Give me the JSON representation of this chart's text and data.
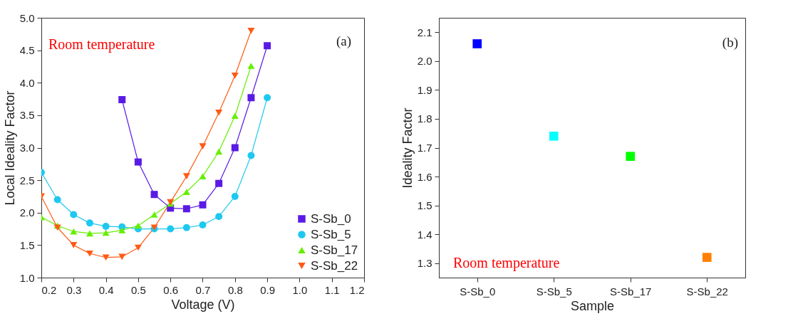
{
  "chart_data": [
    {
      "type": "line",
      "xlabel": "Voltage (V)",
      "ylabel": "Local Ideality Factor",
      "annotations": [
        "Room temperature",
        "(a)"
      ],
      "xlim": [
        0.2,
        1.2
      ],
      "ylim": [
        1.0,
        5.0
      ],
      "xticks": [
        0.2,
        0.3,
        0.4,
        0.5,
        0.6,
        0.7,
        0.8,
        0.9,
        {
          "value": 1,
          "label": "1.0"
        },
        1.1,
        1.2
      ],
      "yticks": [
        {
          "value": 1,
          "label": "1.0"
        },
        1.5,
        {
          "value": 2,
          "label": "2.0"
        },
        2.5,
        {
          "value": 3,
          "label": "3.0"
        },
        3.5,
        {
          "value": 4,
          "label": "4.0"
        },
        4.5,
        {
          "value": 5,
          "label": "5.0"
        }
      ],
      "grid": false,
      "legend": "bottom right",
      "series": [
        {
          "name": "S-Sb_0",
          "color": "#5a1ae6",
          "marker": "square",
          "x": [
            0.45,
            0.5,
            0.55,
            0.6,
            0.65,
            0.7,
            0.75,
            0.8,
            0.85,
            0.9
          ],
          "values": [
            3.74,
            2.78,
            2.28,
            2.07,
            2.06,
            2.12,
            2.45,
            3.0,
            3.77,
            4.57
          ]
        },
        {
          "name": "S-Sb_5",
          "color": "#1ec8f0",
          "marker": "circle",
          "x": [
            0.2,
            0.25,
            0.3,
            0.35,
            0.4,
            0.45,
            0.5,
            0.55,
            0.6,
            0.65,
            0.7,
            0.75,
            0.8,
            0.85,
            0.9
          ],
          "values": [
            2.62,
            2.2,
            1.97,
            1.84,
            1.79,
            1.78,
            1.75,
            1.75,
            1.75,
            1.77,
            1.81,
            1.94,
            2.25,
            2.88,
            3.77
          ]
        },
        {
          "name": "S-Sb_17",
          "color": "#66ee00",
          "marker": "triangle",
          "x": [
            0.2,
            0.25,
            0.3,
            0.35,
            0.4,
            0.45,
            0.5,
            0.55,
            0.6,
            0.65,
            0.7,
            0.75,
            0.8,
            0.85
          ],
          "values": [
            1.93,
            1.8,
            1.71,
            1.68,
            1.69,
            1.73,
            1.8,
            1.97,
            2.14,
            2.32,
            2.56,
            2.94,
            3.49,
            4.26
          ]
        },
        {
          "name": "S-Sb_22",
          "color": "#ff5a14",
          "marker": "triangle-down",
          "x": [
            0.2,
            0.25,
            0.3,
            0.35,
            0.4,
            0.45,
            0.5,
            0.55,
            0.6,
            0.65,
            0.7,
            0.75,
            0.8,
            0.85
          ],
          "values": [
            2.25,
            1.77,
            1.5,
            1.37,
            1.31,
            1.32,
            1.46,
            1.77,
            2.16,
            2.56,
            3.02,
            3.54,
            4.11,
            4.8
          ]
        }
      ]
    },
    {
      "type": "scatter",
      "xlabel": "Sample",
      "ylabel": "Ideality Factor",
      "annotations": [
        "Room temperature",
        "(b)"
      ],
      "categories": [
        "S-Sb_0",
        "S-Sb_5",
        "S-Sb_17",
        "S-Sb_22"
      ],
      "values": [
        2.06,
        1.74,
        1.67,
        1.32
      ],
      "colors": [
        "#0000ff",
        "#00ffff",
        "#00ff00",
        "#ff8000"
      ],
      "marker": "square",
      "ylim": [
        1.25,
        2.15
      ],
      "yticks": [
        1.3,
        1.4,
        1.5,
        1.6,
        1.7,
        1.8,
        1.9,
        {
          "value": 2,
          "label": "2.0"
        },
        2.1
      ],
      "grid": false,
      "legend": false
    }
  ]
}
